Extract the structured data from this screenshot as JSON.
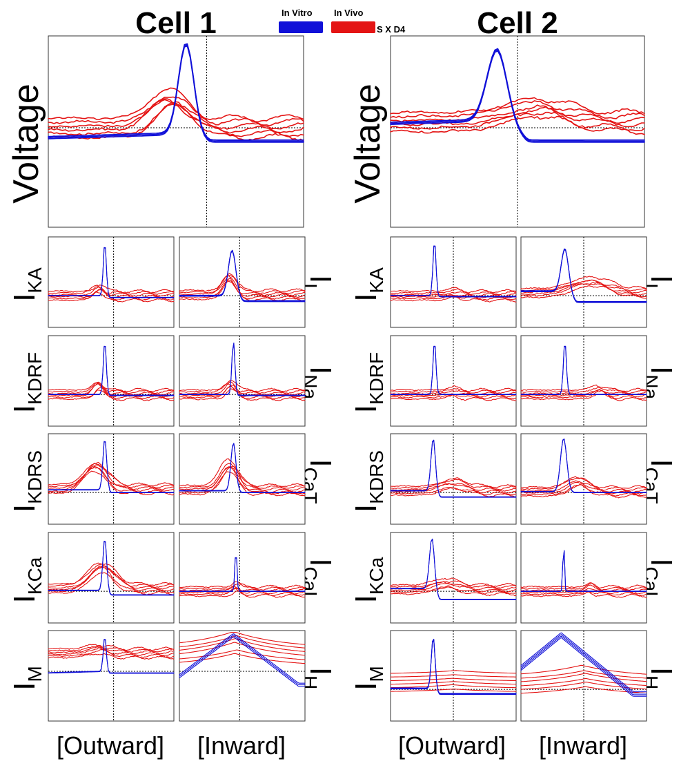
{
  "colors": {
    "in_vitro": "#1010d8",
    "in_vivo": "#e41414"
  },
  "legend": {
    "in_vitro_label": "In Vitro",
    "in_vivo_label": "In Vivo",
    "in_vivo_note": "S X D4"
  },
  "cells": [
    {
      "title": "Cell 1",
      "voltage_label": "Voltage",
      "col_labels": [
        "[Outward]",
        "[Inward]"
      ]
    },
    {
      "title": "Cell 2",
      "voltage_label": "Voltage",
      "col_labels": [
        "[Outward]",
        "[Inward]"
      ]
    }
  ],
  "rows": [
    {
      "outward": {
        "main": "I",
        "sub": "KA"
      },
      "inward": {
        "main": "I",
        "sub": "L"
      }
    },
    {
      "outward": {
        "main": "I",
        "sub": "KDRF"
      },
      "inward": {
        "main": "I",
        "sub": "Na"
      }
    },
    {
      "outward": {
        "main": "I",
        "sub": "KDRS"
      },
      "inward": {
        "main": "I",
        "sub": "CaT"
      }
    },
    {
      "outward": {
        "main": "I",
        "sub": "KCa"
      },
      "inward": {
        "main": "I",
        "sub": "CaL"
      }
    },
    {
      "outward": {
        "main": "I",
        "sub": "M"
      },
      "inward": {
        "main": "I",
        "sub": "H"
      }
    }
  ],
  "chart_data": {
    "type": "line",
    "x_range": [
      0,
      1
    ],
    "y_range": [
      0,
      1
    ],
    "axes_ticks": "none",
    "series_names": [
      "In Vitro",
      "In Vivo"
    ],
    "panels": [
      {
        "cell": "Cell 1",
        "name": "Voltage",
        "ref_x": 0.62,
        "ref_y": 0.52,
        "in_vitro": {
          "base": 0.49,
          "peak": 0.96,
          "peak_x": 0.54,
          "width": 0.03,
          "trough": 0.45,
          "copies": 3
        },
        "in_vivo": {
          "base": 0.52,
          "peak": 0.68,
          "peak_x": 0.48,
          "width": 0.07,
          "copies": 6
        }
      },
      {
        "cell": "Cell 1",
        "name": "IKA",
        "ref_x": 0.52,
        "ref_y": 0.35,
        "in_vitro": {
          "base": 0.35,
          "peak": 0.94,
          "peak_x": 0.45,
          "width": 0.012,
          "trough": 0.33,
          "copies": 2
        },
        "in_vivo": {
          "base": 0.35,
          "peak": 0.44,
          "peak_x": 0.4,
          "width": 0.04,
          "copies": 6
        }
      },
      {
        "cell": "Cell 1",
        "name": "IL",
        "ref_x": 0.48,
        "ref_y": 0.35,
        "in_vitro": {
          "base": 0.35,
          "peak": 0.85,
          "peak_x": 0.42,
          "width": 0.03,
          "trough": 0.29,
          "copies": 3
        },
        "in_vivo": {
          "base": 0.36,
          "peak": 0.55,
          "peak_x": 0.4,
          "width": 0.05,
          "copies": 6
        }
      },
      {
        "cell": "Cell 1",
        "name": "IKDRF",
        "ref_x": 0.52,
        "ref_y": 0.35,
        "in_vitro": {
          "base": 0.35,
          "peak": 0.94,
          "peak_x": 0.45,
          "width": 0.012,
          "trough": 0.34,
          "copies": 2
        },
        "in_vivo": {
          "base": 0.35,
          "peak": 0.45,
          "peak_x": 0.4,
          "width": 0.04,
          "copies": 6
        }
      },
      {
        "cell": "Cell 1",
        "name": "INa",
        "ref_x": 0.48,
        "ref_y": 0.35,
        "in_vitro": {
          "base": 0.35,
          "peak": 0.94,
          "peak_x": 0.43,
          "width": 0.012,
          "trough": 0.34,
          "copies": 2
        },
        "in_vivo": {
          "base": 0.35,
          "peak": 0.46,
          "peak_x": 0.4,
          "width": 0.04,
          "copies": 6
        }
      },
      {
        "cell": "Cell 1",
        "name": "IKDRS",
        "ref_x": 0.52,
        "ref_y": 0.35,
        "in_vitro": {
          "base": 0.38,
          "peak": 0.95,
          "peak_x": 0.45,
          "width": 0.015,
          "trough": 0.35,
          "copies": 2
        },
        "in_vivo": {
          "base": 0.39,
          "peak": 0.65,
          "peak_x": 0.38,
          "width": 0.09,
          "copies": 6
        }
      },
      {
        "cell": "Cell 1",
        "name": "ICaT",
        "ref_x": 0.48,
        "ref_y": 0.35,
        "in_vitro": {
          "base": 0.37,
          "peak": 0.9,
          "peak_x": 0.43,
          "width": 0.02,
          "trough": 0.35,
          "copies": 2
        },
        "in_vivo": {
          "base": 0.38,
          "peak": 0.65,
          "peak_x": 0.4,
          "width": 0.07,
          "copies": 6
        }
      },
      {
        "cell": "Cell 1",
        "name": "IKCa",
        "ref_x": 0.52,
        "ref_y": 0.35,
        "in_vitro": {
          "base": 0.36,
          "peak": 0.94,
          "peak_x": 0.45,
          "width": 0.015,
          "trough": 0.31,
          "copies": 2
        },
        "in_vivo": {
          "base": 0.38,
          "peak": 0.62,
          "peak_x": 0.42,
          "width": 0.1,
          "copies": 6
        }
      },
      {
        "cell": "Cell 1",
        "name": "ICaL",
        "ref_x": 0.48,
        "ref_y": 0.35,
        "in_vitro": {
          "base": 0.35,
          "peak": 0.82,
          "peak_x": 0.45,
          "width": 0.008,
          "trough": 0.35,
          "copies": 2
        },
        "in_vivo": {
          "base": 0.35,
          "peak": 0.4,
          "peak_x": 0.45,
          "width": 0.03,
          "copies": 6
        }
      },
      {
        "cell": "Cell 1",
        "name": "IM",
        "ref_x": 0.52,
        "ref_y": 0.55,
        "in_vitro": {
          "base": 0.55,
          "peak": 0.94,
          "peak_x": 0.45,
          "width": 0.012,
          "trough": 0.53,
          "copies": 2
        },
        "in_vivo": {
          "base": 0.75,
          "peak": 0.8,
          "peak_x": 0.4,
          "width": 0.08,
          "copies": 6
        }
      },
      {
        "cell": "Cell 1",
        "name": "IH",
        "ref_x": 0.48,
        "ref_y": 0.55,
        "in_vitro": {
          "base": 0.4,
          "peak": 0.95,
          "peak_x": 0.43,
          "width": 0.2,
          "trough": 0.35,
          "copies": 3
        },
        "in_vivo": {
          "base": 0.7,
          "peak": 0.88,
          "peak_x": 0.45,
          "width": 0.25,
          "copies": 6
        }
      },
      {
        "cell": "Cell 2",
        "name": "Voltage",
        "ref_x": 0.5,
        "ref_y": 0.52,
        "in_vitro": {
          "base": 0.56,
          "peak": 0.93,
          "peak_x": 0.42,
          "width": 0.04,
          "trough": 0.45,
          "copies": 3
        },
        "in_vivo": {
          "base": 0.55,
          "peak": 0.62,
          "peak_x": 0.58,
          "width": 0.12,
          "copies": 6
        }
      },
      {
        "cell": "Cell 2",
        "name": "IKA",
        "ref_x": 0.5,
        "ref_y": 0.35,
        "in_vitro": {
          "base": 0.35,
          "peak": 0.96,
          "peak_x": 0.35,
          "width": 0.012,
          "trough": 0.34,
          "copies": 2
        },
        "in_vivo": {
          "base": 0.35,
          "peak": 0.38,
          "peak_x": 0.5,
          "width": 0.05,
          "copies": 6
        }
      },
      {
        "cell": "Cell 2",
        "name": "IL",
        "ref_x": 0.5,
        "ref_y": 0.35,
        "in_vitro": {
          "base": 0.4,
          "peak": 0.87,
          "peak_x": 0.35,
          "width": 0.03,
          "trough": 0.28,
          "copies": 3
        },
        "in_vivo": {
          "base": 0.38,
          "peak": 0.5,
          "peak_x": 0.55,
          "width": 0.15,
          "copies": 6
        }
      },
      {
        "cell": "Cell 2",
        "name": "IKDRF",
        "ref_x": 0.5,
        "ref_y": 0.35,
        "in_vitro": {
          "base": 0.35,
          "peak": 0.94,
          "peak_x": 0.35,
          "width": 0.012,
          "trough": 0.35,
          "copies": 2
        },
        "in_vivo": {
          "base": 0.35,
          "peak": 0.38,
          "peak_x": 0.5,
          "width": 0.05,
          "copies": 6
        }
      },
      {
        "cell": "Cell 2",
        "name": "INa",
        "ref_x": 0.5,
        "ref_y": 0.35,
        "in_vitro": {
          "base": 0.35,
          "peak": 0.94,
          "peak_x": 0.35,
          "width": 0.012,
          "trough": 0.35,
          "copies": 2
        },
        "in_vivo": {
          "base": 0.35,
          "peak": 0.4,
          "peak_x": 0.62,
          "width": 0.05,
          "copies": 6
        }
      },
      {
        "cell": "Cell 2",
        "name": "IKDRS",
        "ref_x": 0.5,
        "ref_y": 0.35,
        "in_vitro": {
          "base": 0.37,
          "peak": 0.95,
          "peak_x": 0.34,
          "width": 0.018,
          "trough": 0.3,
          "copies": 2
        },
        "in_vivo": {
          "base": 0.37,
          "peak": 0.45,
          "peak_x": 0.5,
          "width": 0.1,
          "copies": 6
        }
      },
      {
        "cell": "Cell 2",
        "name": "ICaT",
        "ref_x": 0.5,
        "ref_y": 0.35,
        "in_vitro": {
          "base": 0.36,
          "peak": 0.95,
          "peak_x": 0.34,
          "width": 0.025,
          "trough": 0.35,
          "copies": 2
        },
        "in_vivo": {
          "base": 0.36,
          "peak": 0.48,
          "peak_x": 0.45,
          "width": 0.08,
          "copies": 6
        }
      },
      {
        "cell": "Cell 2",
        "name": "IKCa",
        "ref_x": 0.5,
        "ref_y": 0.35,
        "in_vitro": {
          "base": 0.38,
          "peak": 0.94,
          "peak_x": 0.33,
          "width": 0.02,
          "trough": 0.26,
          "copies": 2
        },
        "in_vivo": {
          "base": 0.37,
          "peak": 0.44,
          "peak_x": 0.45,
          "width": 0.1,
          "copies": 6
        }
      },
      {
        "cell": "Cell 2",
        "name": "ICaL",
        "ref_x": 0.5,
        "ref_y": 0.35,
        "in_vitro": {
          "base": 0.35,
          "peak": 0.94,
          "peak_x": 0.34,
          "width": 0.006,
          "trough": 0.35,
          "copies": 2
        },
        "in_vivo": {
          "base": 0.35,
          "peak": 0.4,
          "peak_x": 0.55,
          "width": 0.03,
          "copies": 6
        }
      },
      {
        "cell": "Cell 2",
        "name": "IM",
        "ref_x": 0.5,
        "ref_y": 0.35,
        "in_vitro": {
          "base": 0.36,
          "peak": 0.93,
          "peak_x": 0.34,
          "width": 0.015,
          "trough": 0.3,
          "copies": 3
        },
        "in_vivo": {
          "base": 0.42,
          "peak": 0.46,
          "peak_x": 0.5,
          "width": 0.2,
          "copies": 6
        }
      },
      {
        "cell": "Cell 2",
        "name": "IH",
        "ref_x": 0.5,
        "ref_y": 0.35,
        "in_vitro": {
          "base": 0.3,
          "peak": 0.95,
          "peak_x": 0.32,
          "width": 0.22,
          "trough": 0.2,
          "copies": 4
        },
        "in_vivo": {
          "base": 0.38,
          "peak": 0.5,
          "peak_x": 0.5,
          "width": 0.25,
          "copies": 6
        }
      }
    ]
  }
}
